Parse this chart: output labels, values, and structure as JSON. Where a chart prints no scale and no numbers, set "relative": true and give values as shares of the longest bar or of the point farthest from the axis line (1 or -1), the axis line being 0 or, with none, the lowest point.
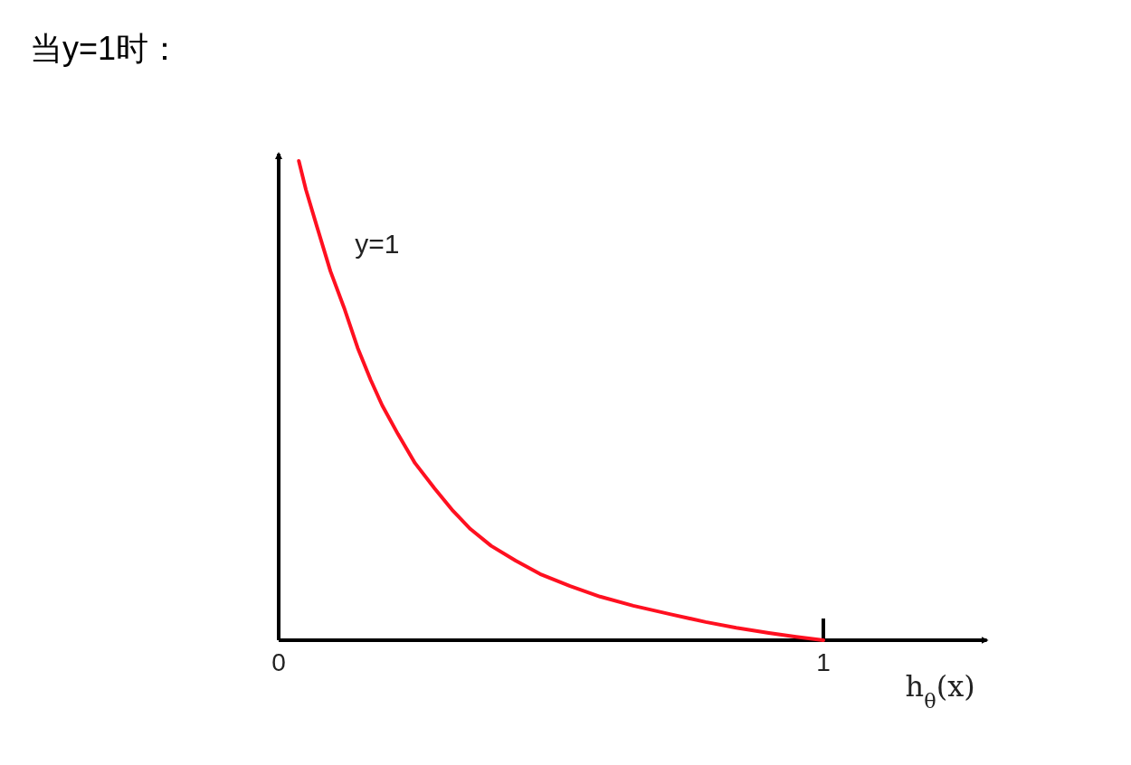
{
  "chart_data": {
    "type": "line",
    "title": "当y=1时：",
    "xlabel": "h$_{θ}$(x)",
    "relative": true,
    "xlim": [
      0,
      1.3
    ],
    "xticks": [
      0,
      1
    ],
    "line_style": "solid",
    "marker": "none",
    "series": [
      {
        "name": "y=1",
        "color": "#ff1020",
        "x": [
          0.037,
          0.05,
          0.07,
          0.095,
          0.12,
          0.145,
          0.169,
          0.19,
          0.219,
          0.25,
          0.286,
          0.32,
          0.352,
          0.39,
          0.435,
          0.48,
          0.535,
          0.59,
          0.651,
          0.72,
          0.784,
          0.84,
          0.9,
          0.95,
          1.0
        ],
        "values": [
          1,
          0.94,
          0.864,
          0.77,
          0.694,
          0.61,
          0.543,
          0.49,
          0.43,
          0.37,
          0.317,
          0.27,
          0.232,
          0.197,
          0.166,
          0.138,
          0.113,
          0.091,
          0.072,
          0.054,
          0.038,
          0.026,
          0.015,
          0.007,
          0
        ]
      }
    ]
  }
}
